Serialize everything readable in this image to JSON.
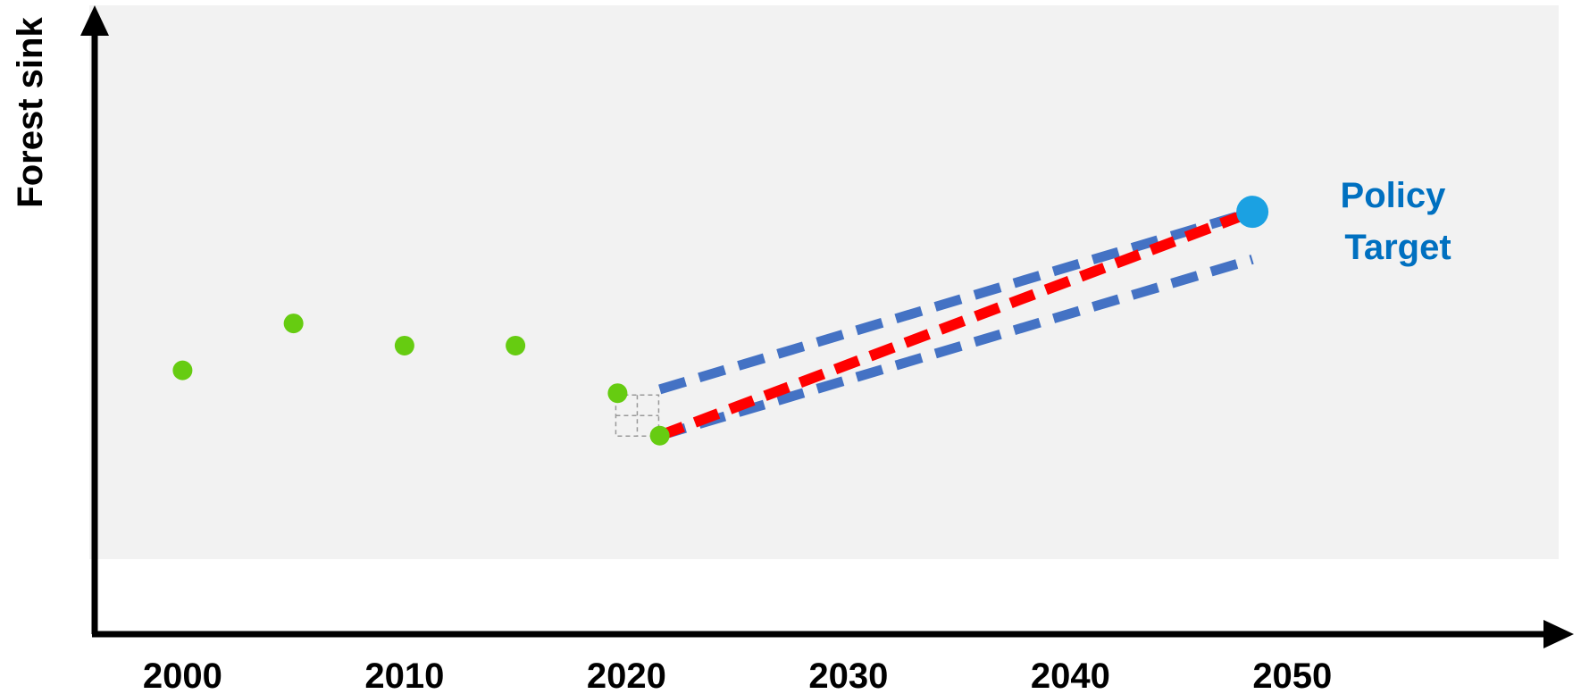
{
  "chart_data": {
    "type": "line",
    "title": "",
    "xlabel": "",
    "ylabel": "Forest sink",
    "xlim": [
      1996,
      2062
    ],
    "ylim": [
      0,
      100
    ],
    "grid": false,
    "x_ticks": [
      2000,
      2010,
      2020,
      2030,
      2040,
      2050
    ],
    "observed": {
      "color": "#66CC11",
      "points": [
        {
          "x": 2000,
          "y": 41.6
        },
        {
          "x": 2005,
          "y": 49.0
        },
        {
          "x": 2010,
          "y": 45.5
        },
        {
          "x": 2015,
          "y": 45.5
        },
        {
          "x": 2019.6,
          "y": 38.0
        },
        {
          "x": 2021.5,
          "y": 31.3
        }
      ]
    },
    "lines": [
      {
        "color": "#4472C4",
        "style": "dashed",
        "points": [
          {
            "x": 2021.5,
            "y": 38.6
          },
          {
            "x": 2048.2,
            "y": 66.6
          }
        ]
      },
      {
        "color": "#4472C4",
        "style": "dashed",
        "points": [
          {
            "x": 2021.5,
            "y": 31.3
          },
          {
            "x": 2048.2,
            "y": 59.1
          }
        ]
      },
      {
        "color": "#FF0000",
        "style": "dashed",
        "points": [
          {
            "x": 2021.5,
            "y": 31.3
          },
          {
            "x": 2048.2,
            "y": 66.6
          }
        ]
      }
    ],
    "target": {
      "x": 2048.2,
      "y": 66.6,
      "color": "#1BA1E2"
    },
    "annotation": {
      "lines": [
        "Policy",
        "Target"
      ],
      "color": "#0070C0"
    }
  }
}
